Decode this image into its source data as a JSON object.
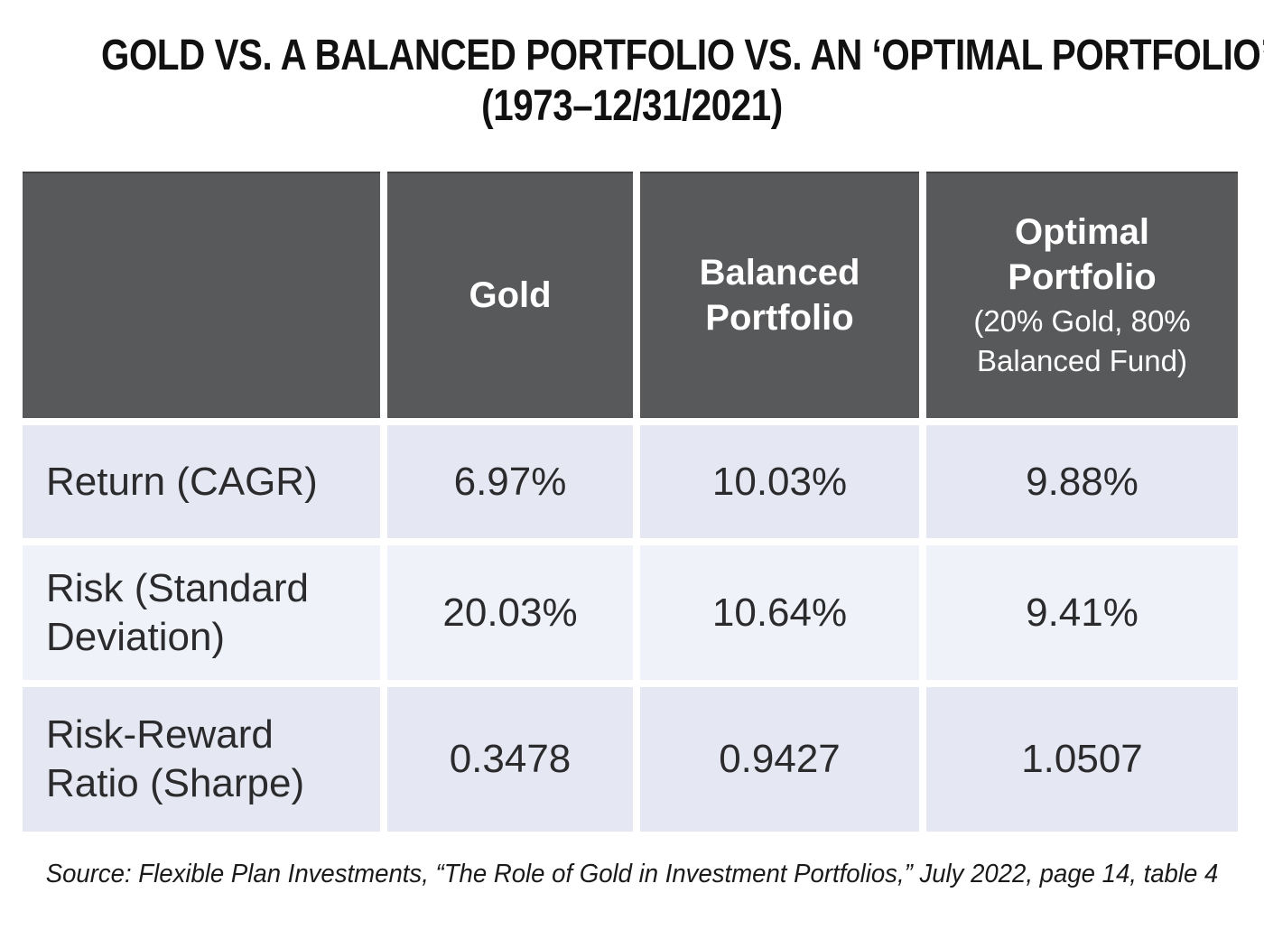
{
  "title": {
    "line1": "GOLD VS. A BALANCED PORTFOLIO VS. AN ‘OPTIMAL PORTFOLIO’",
    "line2": "(1973–12/31/2021)"
  },
  "table": {
    "columns": [
      {
        "label": ""
      },
      {
        "label": "Gold"
      },
      {
        "label": "Balanced Portfolio"
      },
      {
        "label": "Optimal Portfolio",
        "sublabel": "(20% Gold, 80% Balanced Fund)"
      }
    ],
    "rows": [
      {
        "label": "Return (CAGR)",
        "values": [
          "6.97%",
          "10.03%",
          "9.88%"
        ]
      },
      {
        "label": "Risk (Standard Deviation)",
        "values": [
          "20.03%",
          "10.64%",
          "9.41%"
        ]
      },
      {
        "label": "Risk-Reward Ratio (Sharpe)",
        "values": [
          "0.3478",
          "0.9427",
          "1.0507"
        ]
      }
    ]
  },
  "source": "Source: Flexible Plan Investments, “The Role of Gold in Investment Portfolios,” July 2022, page 14, table 4",
  "colors": {
    "header_bg": "#58595b",
    "header_text": "#ffffff",
    "row_odd_bg": "#e5e8f2",
    "row_even_bg": "#eff2f9",
    "body_text": "#2b2b2d",
    "title_text": "#111111",
    "page_bg": "#ffffff"
  },
  "chart_data": {
    "type": "table",
    "title": "GOLD VS. A BALANCED PORTFOLIO VS. AN ‘OPTIMAL PORTFOLIO’ (1973–12/31/2021)",
    "columns": [
      "",
      "Gold",
      "Balanced Portfolio",
      "Optimal Portfolio (20% Gold, 80% Balanced Fund)"
    ],
    "rows": [
      {
        "metric": "Return (CAGR)",
        "Gold": "6.97%",
        "Balanced Portfolio": "10.03%",
        "Optimal Portfolio": "9.88%"
      },
      {
        "metric": "Risk (Standard Deviation)",
        "Gold": "20.03%",
        "Balanced Portfolio": "10.64%",
        "Optimal Portfolio": "9.41%"
      },
      {
        "metric": "Risk-Reward Ratio (Sharpe)",
        "Gold": "0.3478",
        "Balanced Portfolio": "0.9427",
        "Optimal Portfolio": "1.0507"
      }
    ],
    "source": "Source: Flexible Plan Investments, “The Role of Gold in Investment Portfolios,” July 2022, page 14, table 4",
    "legend_position": "none",
    "grid": false
  }
}
